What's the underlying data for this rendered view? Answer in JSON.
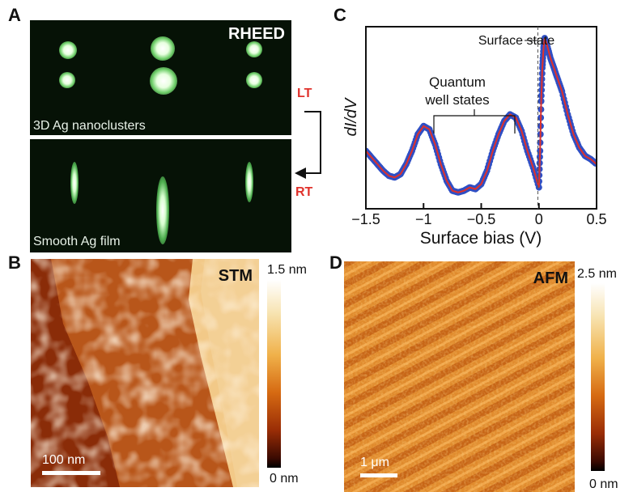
{
  "panels": {
    "a": {
      "letter": "A",
      "title": "RHEED",
      "top_caption": "3D Ag nanoclusters",
      "bottom_caption": "Smooth Ag film",
      "lt_label": "LT",
      "rt_label": "RT"
    },
    "b": {
      "letter": "B",
      "title": "STM",
      "scale_bar": "100 nm",
      "colorbar_max": "1.5 nm",
      "colorbar_min": "0 nm"
    },
    "c": {
      "letter": "C",
      "annotation_surface": "Surface state",
      "annotation_quantum_line1": "Quantum",
      "annotation_quantum_line2": "well states"
    },
    "d": {
      "letter": "D",
      "title": "AFM",
      "scale_bar": "1 μm",
      "colorbar_max": "2.5 nm",
      "colorbar_min": "0 nm"
    }
  },
  "colors": {
    "data_points": "#2f4fc4",
    "fit_line": "#e0312b",
    "arrow_red": "#e0312b"
  },
  "chart_data": {
    "type": "scatter",
    "xlabel": "Surface bias (V)",
    "ylabel": "dI/dV",
    "xlim": [
      -1.5,
      0.5
    ],
    "xticks": [
      "−1.5",
      "−1",
      "−0.5",
      "0",
      "0.5"
    ],
    "y_ticks_shown": false,
    "series": [
      {
        "x": [
          -1.55,
          -1.5,
          -1.45,
          -1.4,
          -1.35,
          -1.3,
          -1.25,
          -1.2,
          -1.15,
          -1.1,
          -1.05,
          -1.0,
          -0.95,
          -0.9,
          -0.85,
          -0.8,
          -0.75,
          -0.7,
          -0.65,
          -0.6,
          -0.55,
          -0.5,
          -0.45,
          -0.4,
          -0.35,
          -0.3,
          -0.25,
          -0.2,
          -0.15,
          -0.1,
          -0.05,
          0.0,
          0.01,
          0.02,
          0.03,
          0.04,
          0.05,
          0.07,
          0.1,
          0.13,
          0.16,
          0.2,
          0.25,
          0.3,
          0.35,
          0.4,
          0.45,
          0.5
        ],
        "y": [
          0.25,
          0.3,
          0.26,
          0.22,
          0.18,
          0.15,
          0.14,
          0.16,
          0.22,
          0.3,
          0.4,
          0.45,
          0.43,
          0.34,
          0.22,
          0.12,
          0.06,
          0.05,
          0.06,
          0.08,
          0.07,
          0.1,
          0.18,
          0.3,
          0.4,
          0.48,
          0.52,
          0.5,
          0.42,
          0.3,
          0.2,
          0.08,
          0.3,
          0.6,
          0.8,
          0.92,
          0.98,
          0.94,
          0.86,
          0.8,
          0.74,
          0.66,
          0.52,
          0.4,
          0.32,
          0.27,
          0.25,
          0.22
        ]
      }
    ]
  }
}
